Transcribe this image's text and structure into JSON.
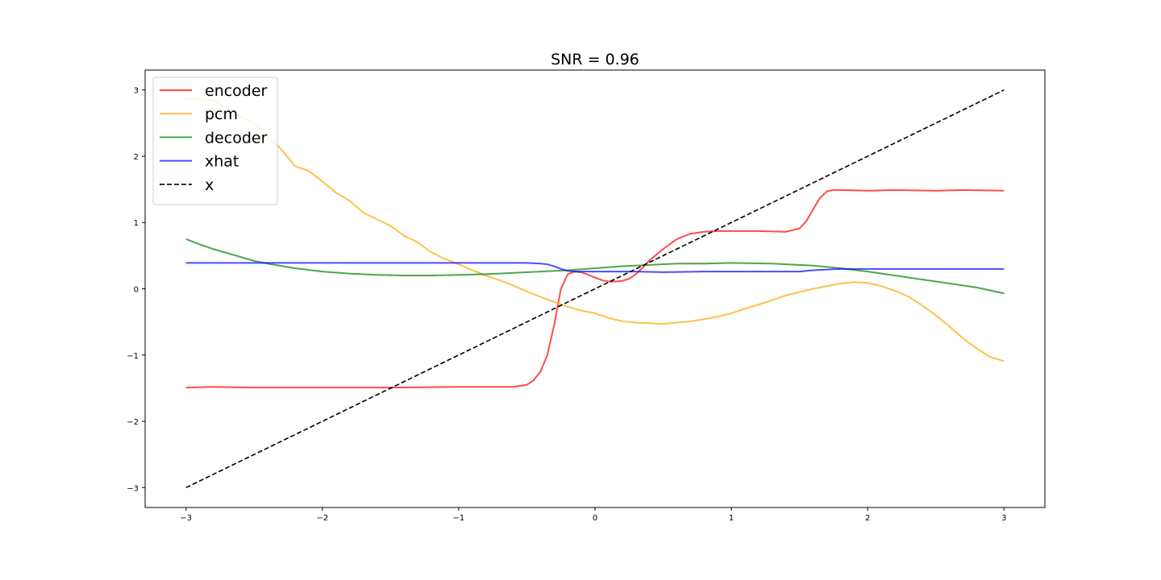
{
  "chart_data": {
    "type": "line",
    "title": "SNR = 0.96",
    "xlabel": "",
    "ylabel": "",
    "xlim": [
      -3.3,
      3.3
    ],
    "ylim": [
      -3.3,
      3.3
    ],
    "xticks": [
      -3,
      -2,
      -1,
      0,
      1,
      2,
      3
    ],
    "yticks": [
      -3,
      -2,
      -1,
      0,
      1,
      2,
      3
    ],
    "xtick_labels": [
      "−3",
      "−2",
      "−1",
      "0",
      "1",
      "2",
      "3"
    ],
    "ytick_labels": [
      "−3",
      "−2",
      "−1",
      "0",
      "1",
      "2",
      "3"
    ],
    "grid": false,
    "legend_position": "top-left",
    "series": [
      {
        "name": "encoder",
        "color": "#ff0000",
        "dashed": false,
        "x": [
          -3.0,
          -2.8,
          -2.5,
          -2.0,
          -1.5,
          -1.0,
          -0.6,
          -0.5,
          -0.45,
          -0.4,
          -0.35,
          -0.3,
          -0.25,
          -0.2,
          -0.15,
          -0.1,
          -0.05,
          0.0,
          0.05,
          0.1,
          0.15,
          0.2,
          0.25,
          0.3,
          0.35,
          0.4,
          0.5,
          0.6,
          0.7,
          0.8,
          0.9,
          1.0,
          1.2,
          1.4,
          1.5,
          1.55,
          1.6,
          1.65,
          1.7,
          1.75,
          1.8,
          2.0,
          2.2,
          2.5,
          2.7,
          3.0
        ],
        "y": [
          -1.49,
          -1.48,
          -1.49,
          -1.49,
          -1.49,
          -1.48,
          -1.48,
          -1.45,
          -1.38,
          -1.25,
          -1.0,
          -0.55,
          0.0,
          0.22,
          0.26,
          0.25,
          0.21,
          0.17,
          0.13,
          0.11,
          0.11,
          0.12,
          0.15,
          0.22,
          0.32,
          0.43,
          0.6,
          0.75,
          0.83,
          0.86,
          0.87,
          0.87,
          0.87,
          0.86,
          0.91,
          1.02,
          1.2,
          1.37,
          1.47,
          1.49,
          1.49,
          1.48,
          1.49,
          1.48,
          1.49,
          1.48
        ]
      },
      {
        "name": "pcm",
        "color": "#ffa500",
        "dashed": false,
        "x": [
          -3.0,
          -2.8,
          -2.6,
          -2.5,
          -2.4,
          -2.3,
          -2.2,
          -2.1,
          -2.0,
          -1.9,
          -1.8,
          -1.7,
          -1.6,
          -1.5,
          -1.4,
          -1.3,
          -1.2,
          -1.1,
          -1.0,
          -0.9,
          -0.8,
          -0.7,
          -0.6,
          -0.5,
          -0.4,
          -0.3,
          -0.2,
          -0.1,
          0.0,
          0.1,
          0.2,
          0.3,
          0.4,
          0.5,
          0.6,
          0.7,
          0.8,
          0.9,
          1.0,
          1.1,
          1.2,
          1.3,
          1.4,
          1.5,
          1.6,
          1.7,
          1.8,
          1.9,
          2.0,
          2.1,
          2.2,
          2.3,
          2.4,
          2.5,
          2.6,
          2.7,
          2.8,
          2.9,
          3.0
        ],
        "y": [
          2.87,
          2.85,
          2.6,
          2.5,
          2.3,
          2.1,
          1.85,
          1.78,
          1.62,
          1.45,
          1.33,
          1.15,
          1.05,
          0.95,
          0.8,
          0.7,
          0.55,
          0.45,
          0.37,
          0.28,
          0.2,
          0.13,
          0.05,
          -0.04,
          -0.12,
          -0.2,
          -0.27,
          -0.33,
          -0.37,
          -0.44,
          -0.49,
          -0.51,
          -0.52,
          -0.53,
          -0.51,
          -0.49,
          -0.46,
          -0.42,
          -0.37,
          -0.3,
          -0.24,
          -0.17,
          -0.1,
          -0.05,
          0.0,
          0.04,
          0.08,
          0.1,
          0.09,
          0.04,
          -0.03,
          -0.12,
          -0.25,
          -0.4,
          -0.57,
          -0.75,
          -0.9,
          -1.03,
          -1.09
        ]
      },
      {
        "name": "decoder",
        "color": "#008000",
        "dashed": false,
        "x": [
          -3.0,
          -2.9,
          -2.8,
          -2.7,
          -2.6,
          -2.5,
          -2.4,
          -2.2,
          -2.0,
          -1.8,
          -1.6,
          -1.4,
          -1.2,
          -1.0,
          -0.8,
          -0.6,
          -0.4,
          -0.2,
          0.0,
          0.2,
          0.4,
          0.6,
          0.8,
          1.0,
          1.3,
          1.6,
          1.8,
          2.0,
          2.2,
          2.4,
          2.6,
          2.8,
          3.0
        ],
        "y": [
          0.75,
          0.67,
          0.6,
          0.54,
          0.48,
          0.42,
          0.38,
          0.31,
          0.26,
          0.23,
          0.21,
          0.2,
          0.2,
          0.21,
          0.22,
          0.24,
          0.26,
          0.28,
          0.31,
          0.34,
          0.36,
          0.38,
          0.38,
          0.39,
          0.38,
          0.35,
          0.31,
          0.26,
          0.2,
          0.14,
          0.08,
          0.02,
          -0.07
        ]
      },
      {
        "name": "xhat",
        "color": "#0000ff",
        "dashed": false,
        "x": [
          -3.0,
          -2.5,
          -2.0,
          -1.5,
          -1.0,
          -0.6,
          -0.5,
          -0.4,
          -0.35,
          -0.3,
          -0.25,
          -0.2,
          -0.15,
          -0.1,
          0.0,
          0.3,
          0.5,
          0.8,
          1.0,
          1.3,
          1.5,
          1.55,
          1.6,
          1.7,
          1.8,
          2.0,
          2.5,
          3.0
        ],
        "y": [
          0.39,
          0.39,
          0.39,
          0.39,
          0.39,
          0.39,
          0.39,
          0.38,
          0.37,
          0.34,
          0.3,
          0.27,
          0.26,
          0.26,
          0.26,
          0.26,
          0.25,
          0.26,
          0.26,
          0.26,
          0.26,
          0.27,
          0.28,
          0.29,
          0.3,
          0.3,
          0.3,
          0.3
        ]
      },
      {
        "name": "x",
        "color": "#000000",
        "dashed": true,
        "x": [
          -3.0,
          3.0
        ],
        "y": [
          -3.0,
          3.0
        ]
      }
    ]
  }
}
